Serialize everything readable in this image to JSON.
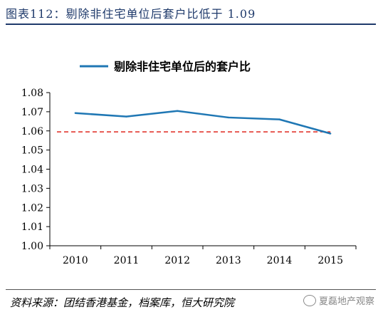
{
  "figure": {
    "title": "图表112：剔除非住宅单位后套户比低于 1.09",
    "source": "资料来源：团结香港基金，档案库，恒大研究院",
    "watermark": "夏磊地产观察"
  },
  "colors": {
    "series": "#1f77b4",
    "reference": "#e0271f",
    "rule": "#1f3a6b"
  },
  "chart_data": {
    "type": "line",
    "title": "",
    "xlabel": "",
    "ylabel": "",
    "x": [
      "2010",
      "2011",
      "2012",
      "2013",
      "2014",
      "2015"
    ],
    "ylim": [
      1.0,
      1.08
    ],
    "yticks": [
      "1.08",
      "1.07",
      "1.06",
      "1.05",
      "1.04",
      "1.03",
      "1.02",
      "1.01",
      "1.00"
    ],
    "series": [
      {
        "name": "剔除非住宅单位后的套户比",
        "values": [
          1.0693,
          1.0675,
          1.0704,
          1.067,
          1.066,
          1.0586
        ]
      }
    ],
    "reference_line": {
      "value": 1.0595,
      "style": "dashed"
    },
    "legend": "top-center",
    "grid": false
  }
}
